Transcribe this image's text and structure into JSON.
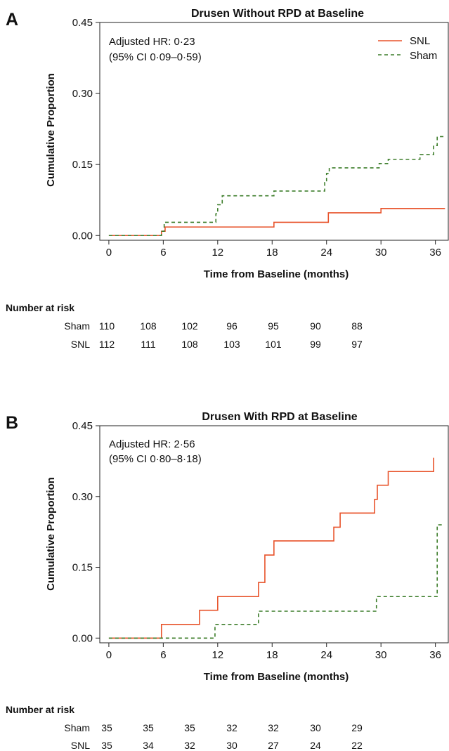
{
  "chart_data": [
    {
      "type": "line",
      "panel": "A",
      "title": "Drusen Without RPD at Baseline",
      "xlabel": "Time from Baseline (months)",
      "ylabel": "Cumulative Proportion",
      "xlim": [
        -1,
        37.5
      ],
      "ylim": [
        -0.01,
        0.45
      ],
      "xticks": [
        0,
        6,
        12,
        18,
        24,
        30,
        36
      ],
      "yticks": [
        0.0,
        0.15,
        0.3,
        0.45
      ],
      "ytick_labels": [
        "0.00",
        "0.15",
        "0.30",
        "0.45"
      ],
      "annotation": [
        "Adjusted HR: 0·23",
        "(95% CI 0·09–0·59)"
      ],
      "legend_position": "top-right",
      "series": [
        {
          "name": "SNL",
          "color": "#e8532b",
          "dash": "solid",
          "x": [
            0,
            5.8,
            6.2,
            18.2,
            24.2,
            30.0,
            37.0
          ],
          "y": [
            0.0,
            0.009,
            0.018,
            0.028,
            0.048,
            0.057,
            0.058
          ]
        },
        {
          "name": "Sham",
          "color": "#3c7d2a",
          "dash": "dashed",
          "x": [
            0,
            5.8,
            6.1,
            11.8,
            12.0,
            12.5,
            18.2,
            23.8,
            24.0,
            24.3,
            29.8,
            30.8,
            34.3,
            35.8,
            36.2,
            37.0
          ],
          "y": [
            0.0,
            0.009,
            0.028,
            0.046,
            0.065,
            0.084,
            0.094,
            0.112,
            0.131,
            0.143,
            0.152,
            0.161,
            0.171,
            0.19,
            0.209,
            0.209
          ]
        }
      ],
      "risk_table": {
        "heading": "Number at risk",
        "rows": [
          {
            "label": "Sham",
            "values": [
              "110",
              "108",
              "102",
              "96",
              "95",
              "90",
              "88"
            ]
          },
          {
            "label": "SNL",
            "values": [
              "112",
              "111",
              "108",
              "103",
              "101",
              "99",
              "97"
            ]
          }
        ]
      }
    },
    {
      "type": "line",
      "panel": "B",
      "title": "Drusen With RPD at Baseline",
      "xlabel": "Time from Baseline (months)",
      "ylabel": "Cumulative Proportion",
      "xlim": [
        -1,
        37.5
      ],
      "ylim": [
        -0.01,
        0.45
      ],
      "xticks": [
        0,
        6,
        12,
        18,
        24,
        30,
        36
      ],
      "yticks": [
        0.0,
        0.15,
        0.3,
        0.45
      ],
      "ytick_labels": [
        "0.00",
        "0.15",
        "0.30",
        "0.45"
      ],
      "annotation": [
        "Adjusted HR: 2·56",
        "(95% CI 0·80–8·18)"
      ],
      "series": [
        {
          "name": "SNL",
          "color": "#e8532b",
          "dash": "solid",
          "x": [
            0,
            5.8,
            10.0,
            12.0,
            16.5,
            17.2,
            18.2,
            24.8,
            25.5,
            29.3,
            29.6,
            30.8,
            35.8,
            35.8
          ],
          "y": [
            0.0,
            0.029,
            0.059,
            0.088,
            0.118,
            0.176,
            0.206,
            0.235,
            0.265,
            0.294,
            0.324,
            0.353,
            0.353,
            0.382
          ]
        },
        {
          "name": "Sham",
          "color": "#3c7d2a",
          "dash": "dashed",
          "x": [
            0,
            11.7,
            16.5,
            29.5,
            36.2,
            37.0
          ],
          "y": [
            0.0,
            0.029,
            0.057,
            0.088,
            0.24,
            0.24
          ]
        }
      ],
      "risk_table": {
        "heading": "Number at risk",
        "rows": [
          {
            "label": "Sham",
            "values": [
              "35",
              "35",
              "35",
              "32",
              "32",
              "30",
              "29"
            ]
          },
          {
            "label": "SNL",
            "values": [
              "35",
              "34",
              "32",
              "30",
              "27",
              "24",
              "22"
            ]
          }
        ]
      }
    }
  ]
}
